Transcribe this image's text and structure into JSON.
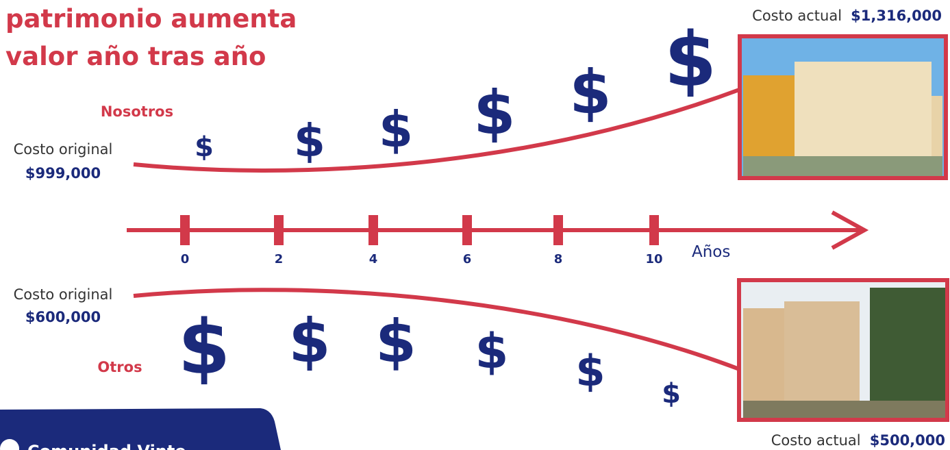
{
  "title": [
    "patrimonio aumenta",
    "valor año tras año"
  ],
  "nosotros": {
    "label": "Nosotros",
    "original_label": "Costo original",
    "original_value": "$999,000",
    "current_label": "Costo actual",
    "current_value": "$1,316,000",
    "symbols": [
      "$",
      "$",
      "$",
      "$",
      "$",
      "$"
    ]
  },
  "otros": {
    "label": "Otros",
    "original_label": "Costo original",
    "original_value": "$600,000",
    "current_label": "Costo actual",
    "current_value": "$500,000",
    "symbols": [
      "$",
      "$",
      "$",
      "$",
      "$",
      "$"
    ]
  },
  "timeline": {
    "ticks": [
      "0",
      "2",
      "4",
      "6",
      "8",
      "10"
    ],
    "unit": "Años"
  },
  "footer": {
    "text": "Comunidad Vinte"
  }
}
